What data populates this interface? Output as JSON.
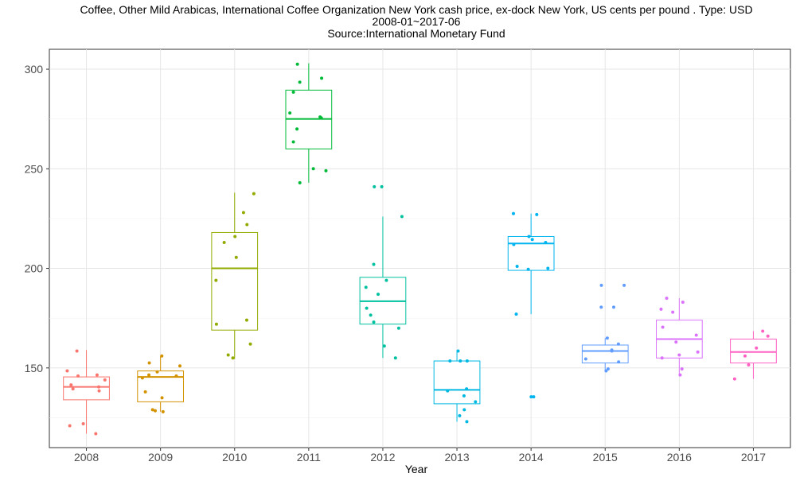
{
  "chart_data": {
    "type": "box",
    "title_lines": [
      "Coffee, Other Mild Arabicas, International Coffee Organization New York cash price, ex-dock New York, US cents per pound . Type: USD",
      "2008-01~2017-06",
      "Source:International Monetary Fund"
    ],
    "xlabel": "Year",
    "ylabel": "",
    "categories": [
      "2008",
      "2009",
      "2010",
      "2011",
      "2012",
      "2013",
      "2014",
      "2015",
      "2016",
      "2017"
    ],
    "y_ticks": [
      150,
      200,
      250,
      300
    ],
    "ylim": [
      110,
      310
    ],
    "grid": true,
    "legend": "none",
    "colors": [
      "#F8766D",
      "#D39200",
      "#93AA00",
      "#00BA38",
      "#00C19F",
      "#00B9E3",
      "#00B4F0",
      "#619CFF",
      "#DB72FB",
      "#FF61C3"
    ],
    "boxes": [
      {
        "year": "2008",
        "q1": 134,
        "median": 140.5,
        "q3": 145.5,
        "whisker_low": 117,
        "whisker_high": 159,
        "points": [
          117,
          121,
          122,
          138.5,
          139.5,
          140.5,
          141.5,
          144,
          146,
          146.5,
          148.5,
          158.5
        ]
      },
      {
        "year": "2009",
        "q1": 133,
        "median": 145.5,
        "q3": 148.5,
        "whisker_low": 128,
        "whisker_high": 156,
        "points": [
          128,
          128.5,
          129,
          135,
          138,
          145,
          146,
          146.5,
          148,
          151,
          152.5,
          156
        ]
      },
      {
        "year": "2010",
        "q1": 169,
        "median": 200,
        "q3": 218,
        "whisker_low": 154.5,
        "whisker_high": 238,
        "points": [
          155,
          156.5,
          162,
          172,
          174,
          194,
          205.5,
          213,
          216,
          222,
          228,
          237.5
        ]
      },
      {
        "year": "2011",
        "q1": 260,
        "median": 275,
        "q3": 289.5,
        "whisker_low": 243,
        "whisker_high": 303,
        "points": [
          243,
          249,
          250,
          263.5,
          270,
          275.5,
          276,
          278,
          288.5,
          293.5,
          295.5,
          302.5
        ]
      },
      {
        "year": "2012",
        "q1": 172,
        "median": 183.5,
        "q3": 195.5,
        "whisker_low": 155,
        "whisker_high": 226,
        "points": [
          155,
          161,
          170,
          173,
          176.5,
          180,
          187,
          190.5,
          194,
          202,
          226,
          241,
          241
        ]
      },
      {
        "year": "2013",
        "q1": 132,
        "median": 139,
        "q3": 153.5,
        "whisker_low": 123,
        "whisker_high": 159,
        "points": [
          123,
          126,
          129,
          133,
          136,
          138.5,
          139.5,
          153.5,
          153.5,
          153.5,
          158.5
        ]
      },
      {
        "year": "2014",
        "q1": 199,
        "median": 212.5,
        "q3": 216,
        "whisker_low": 177,
        "whisker_high": 227.5,
        "points": [
          135.5,
          135.5,
          177,
          199.5,
          200,
          201,
          212,
          213,
          214.5,
          216,
          227,
          227.5
        ]
      },
      {
        "year": "2015",
        "q1": 152.5,
        "median": 158.5,
        "q3": 161.5,
        "whisker_low": 148.5,
        "whisker_high": 165,
        "points": [
          148.5,
          149.5,
          153,
          154.5,
          158.5,
          159,
          162,
          165,
          180.5,
          180.5,
          191.5,
          191.5
        ]
      },
      {
        "year": "2016",
        "q1": 155,
        "median": 164.5,
        "q3": 174,
        "whisker_low": 146.5,
        "whisker_high": 185,
        "points": [
          146.5,
          149.5,
          155,
          156.5,
          158,
          163,
          166.5,
          170.5,
          178,
          179.5,
          183,
          185
        ]
      },
      {
        "year": "2017",
        "q1": 152.5,
        "median": 158,
        "q3": 164.5,
        "whisker_low": 144.5,
        "whisker_high": 168.5,
        "points": [
          144.5,
          151.5,
          156,
          160,
          166,
          168.5
        ]
      }
    ]
  }
}
